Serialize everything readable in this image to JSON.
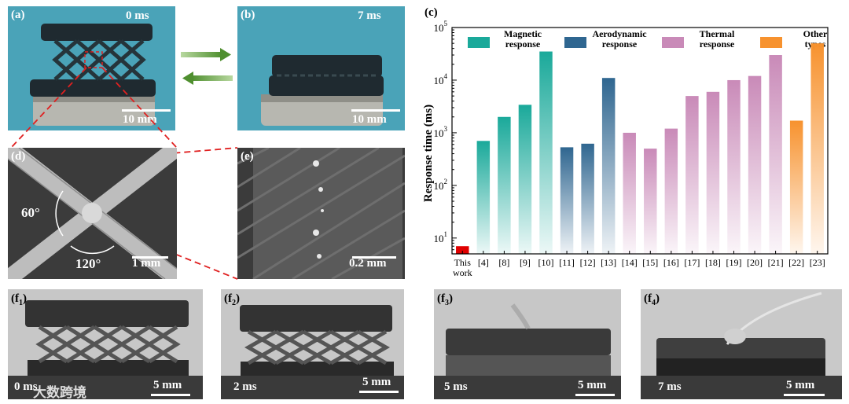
{
  "panels": {
    "a": {
      "label": "(a)",
      "time": "0 ms",
      "scale": "10 mm"
    },
    "b": {
      "label": "(b)",
      "time": "7 ms",
      "scale": "10 mm"
    },
    "c": {
      "label": "(c)"
    },
    "d": {
      "label": "(d)",
      "angle1": "60°",
      "angle2": "120°",
      "scale": "1 mm"
    },
    "e": {
      "label": "(e)",
      "scale": "0.2 mm"
    },
    "f1": {
      "label": "(f",
      "sub": "1",
      "time": "0 ms",
      "scale": "5 mm"
    },
    "f2": {
      "label": "(f",
      "sub": "2",
      "time": "2 ms",
      "scale": "5 mm"
    },
    "f3": {
      "label": "(f",
      "sub": "3",
      "time": "5 ms",
      "scale": "5 mm"
    },
    "f4": {
      "label": "(f",
      "sub": "4",
      "time": "7 ms",
      "scale": "5 mm"
    }
  },
  "watermark": "大数跨境",
  "colors": {
    "sky": "#4aa3b8",
    "magnetic": "#1aa99a",
    "aerodynamic": "#2f6690",
    "thermal": "#c98ab8",
    "other": "#f7922e",
    "this_work": "#e00000"
  },
  "chart_data": {
    "type": "bar",
    "ylabel": "Response time (ms)",
    "yscale": "log",
    "ylim": [
      5,
      100000
    ],
    "yticks": [
      "10",
      "10",
      "10",
      "10",
      "10"
    ],
    "ytick_exponents": [
      "1",
      "2",
      "3",
      "4",
      "5"
    ],
    "categories": [
      "This work",
      "[4]",
      "[8]",
      "[9]",
      "[10]",
      "[11]",
      "[12]",
      "[13]",
      "[14]",
      "[15]",
      "[16]",
      "[17]",
      "[18]",
      "[19]",
      "[20]",
      "[21]",
      "[22]",
      "[23]"
    ],
    "category_lines": [
      [
        "This",
        "work"
      ],
      [
        "[4]"
      ],
      [
        "[8]"
      ],
      [
        "[9]"
      ],
      [
        "[10]"
      ],
      [
        "[11]"
      ],
      [
        "[12]"
      ],
      [
        "[13]"
      ],
      [
        "[14]"
      ],
      [
        "[15]"
      ],
      [
        "[16]"
      ],
      [
        "[17]"
      ],
      [
        "[18]"
      ],
      [
        "[19]"
      ],
      [
        "[20]"
      ],
      [
        "[21]"
      ],
      [
        "[22]"
      ],
      [
        "[23]"
      ]
    ],
    "values": [
      7,
      700,
      2000,
      3400,
      35000,
      530,
      620,
      11000,
      1000,
      500,
      1200,
      5000,
      6000,
      10000,
      12000,
      30000,
      1700,
      50000
    ],
    "groups": [
      "this",
      "magnetic",
      "magnetic",
      "magnetic",
      "magnetic",
      "aerodynamic",
      "aerodynamic",
      "aerodynamic",
      "thermal",
      "thermal",
      "thermal",
      "thermal",
      "thermal",
      "thermal",
      "thermal",
      "thermal",
      "other",
      "other"
    ],
    "legend": [
      {
        "key": "magnetic",
        "lines": [
          "Magnetic",
          "response"
        ]
      },
      {
        "key": "aerodynamic",
        "lines": [
          "Aerodynamic",
          "response"
        ]
      },
      {
        "key": "thermal",
        "lines": [
          "Thermal",
          "response"
        ]
      },
      {
        "key": "other",
        "lines": [
          "Other",
          "types"
        ]
      }
    ]
  }
}
